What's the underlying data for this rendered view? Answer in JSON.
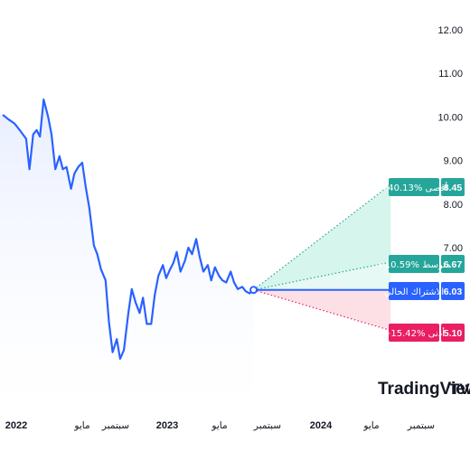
{
  "branding": {
    "logo_text": "TradingView",
    "logo_mark": "TV"
  },
  "colors": {
    "price_line": "#2962ff",
    "area_fill": "#e8eeff",
    "high": "#26a69a",
    "average": "#26a69a",
    "current": "#2962ff",
    "low": "#e91e63",
    "high_zone": "#d6f5ec",
    "low_zone": "#fde0e6"
  },
  "chart_data": {
    "type": "line",
    "title": "",
    "xlabel": "",
    "ylabel": "",
    "ylim": [
      3.6,
      12.5
    ],
    "y_ticks": [
      "12.00",
      "11.00",
      "10.00",
      "9.00",
      "8.00",
      "7.00"
    ],
    "x_ticks": [
      {
        "label": "2022",
        "year": true
      },
      {
        "label": "مايو",
        "year": false
      },
      {
        "label": "سبتمبر",
        "year": false
      },
      {
        "label": "2023",
        "year": true
      },
      {
        "label": "مايو",
        "year": false
      },
      {
        "label": "سبتمبر",
        "year": false
      },
      {
        "label": "2024",
        "year": true
      },
      {
        "label": "مايو",
        "year": false
      },
      {
        "label": "سبتمبر",
        "year": false
      }
    ],
    "x_range": [
      "2022-01-01",
      "2024-12-31"
    ],
    "grid": false,
    "series": [
      {
        "x": [
          "2021-12-01",
          "2021-12-15",
          "2022-01-01",
          "2022-01-15",
          "2022-02-01",
          "2022-02-10",
          "2022-02-20",
          "2022-03-01",
          "2022-03-10",
          "2022-03-20",
          "2022-04-01",
          "2022-04-10",
          "2022-04-20",
          "2022-05-01",
          "2022-05-10",
          "2022-05-20",
          "2022-06-01",
          "2022-06-10",
          "2022-06-20",
          "2022-07-01",
          "2022-07-10",
          "2022-07-20",
          "2022-08-01",
          "2022-08-10",
          "2022-08-20",
          "2022-09-01",
          "2022-09-10",
          "2022-09-20",
          "2022-10-01",
          "2022-10-10",
          "2022-10-20",
          "2022-11-01",
          "2022-11-10",
          "2022-11-20",
          "2022-12-01",
          "2022-12-10",
          "2022-12-20",
          "2023-01-01",
          "2023-01-10",
          "2023-01-20",
          "2023-02-01",
          "2023-02-10",
          "2023-02-20",
          "2023-03-01",
          "2023-03-10",
          "2023-03-20",
          "2023-04-01",
          "2023-04-10",
          "2023-04-20",
          "2023-05-01",
          "2023-05-10",
          "2023-05-20",
          "2023-06-01",
          "2023-06-10",
          "2023-06-20",
          "2023-07-01",
          "2023-07-10",
          "2023-07-20",
          "2023-08-01",
          "2023-08-10",
          "2023-08-20",
          "2023-09-01",
          "2023-09-10",
          "2023-09-20",
          "2023-10-01"
        ],
        "values": [
          10.05,
          9.95,
          9.85,
          9.7,
          9.5,
          8.8,
          9.6,
          9.7,
          9.55,
          10.4,
          10.0,
          9.6,
          8.8,
          9.1,
          8.8,
          8.85,
          8.35,
          8.7,
          8.85,
          8.95,
          8.4,
          7.9,
          7.05,
          6.85,
          6.5,
          6.25,
          5.3,
          4.6,
          4.9,
          4.45,
          4.65,
          5.5,
          6.05,
          5.75,
          5.5,
          5.85,
          5.25,
          5.25,
          5.9,
          6.35,
          6.6,
          6.3,
          6.5,
          6.65,
          6.9,
          6.45,
          6.7,
          7.0,
          6.85,
          7.2,
          6.8,
          6.45,
          6.6,
          6.25,
          6.55,
          6.35,
          6.25,
          6.2,
          6.45,
          6.2,
          6.05,
          6.1,
          6.0,
          5.95,
          6.03
        ]
      }
    ],
    "forecast": {
      "start": "2023-10-01",
      "end": "2024-10-01",
      "high": {
        "label": "أقصى",
        "change": "+40.13%",
        "value": "8.45",
        "y": 8.45
      },
      "average": {
        "label": "متوسط",
        "change": "+10.59%",
        "value": "6.67",
        "y": 6.67
      },
      "current": {
        "label": "الاشتراك الحالي",
        "change": "",
        "value": "6.03",
        "y": 6.03
      },
      "low": {
        "label": "أدنى",
        "change": "−15.42%",
        "value": "5.10",
        "y": 5.1
      }
    }
  }
}
